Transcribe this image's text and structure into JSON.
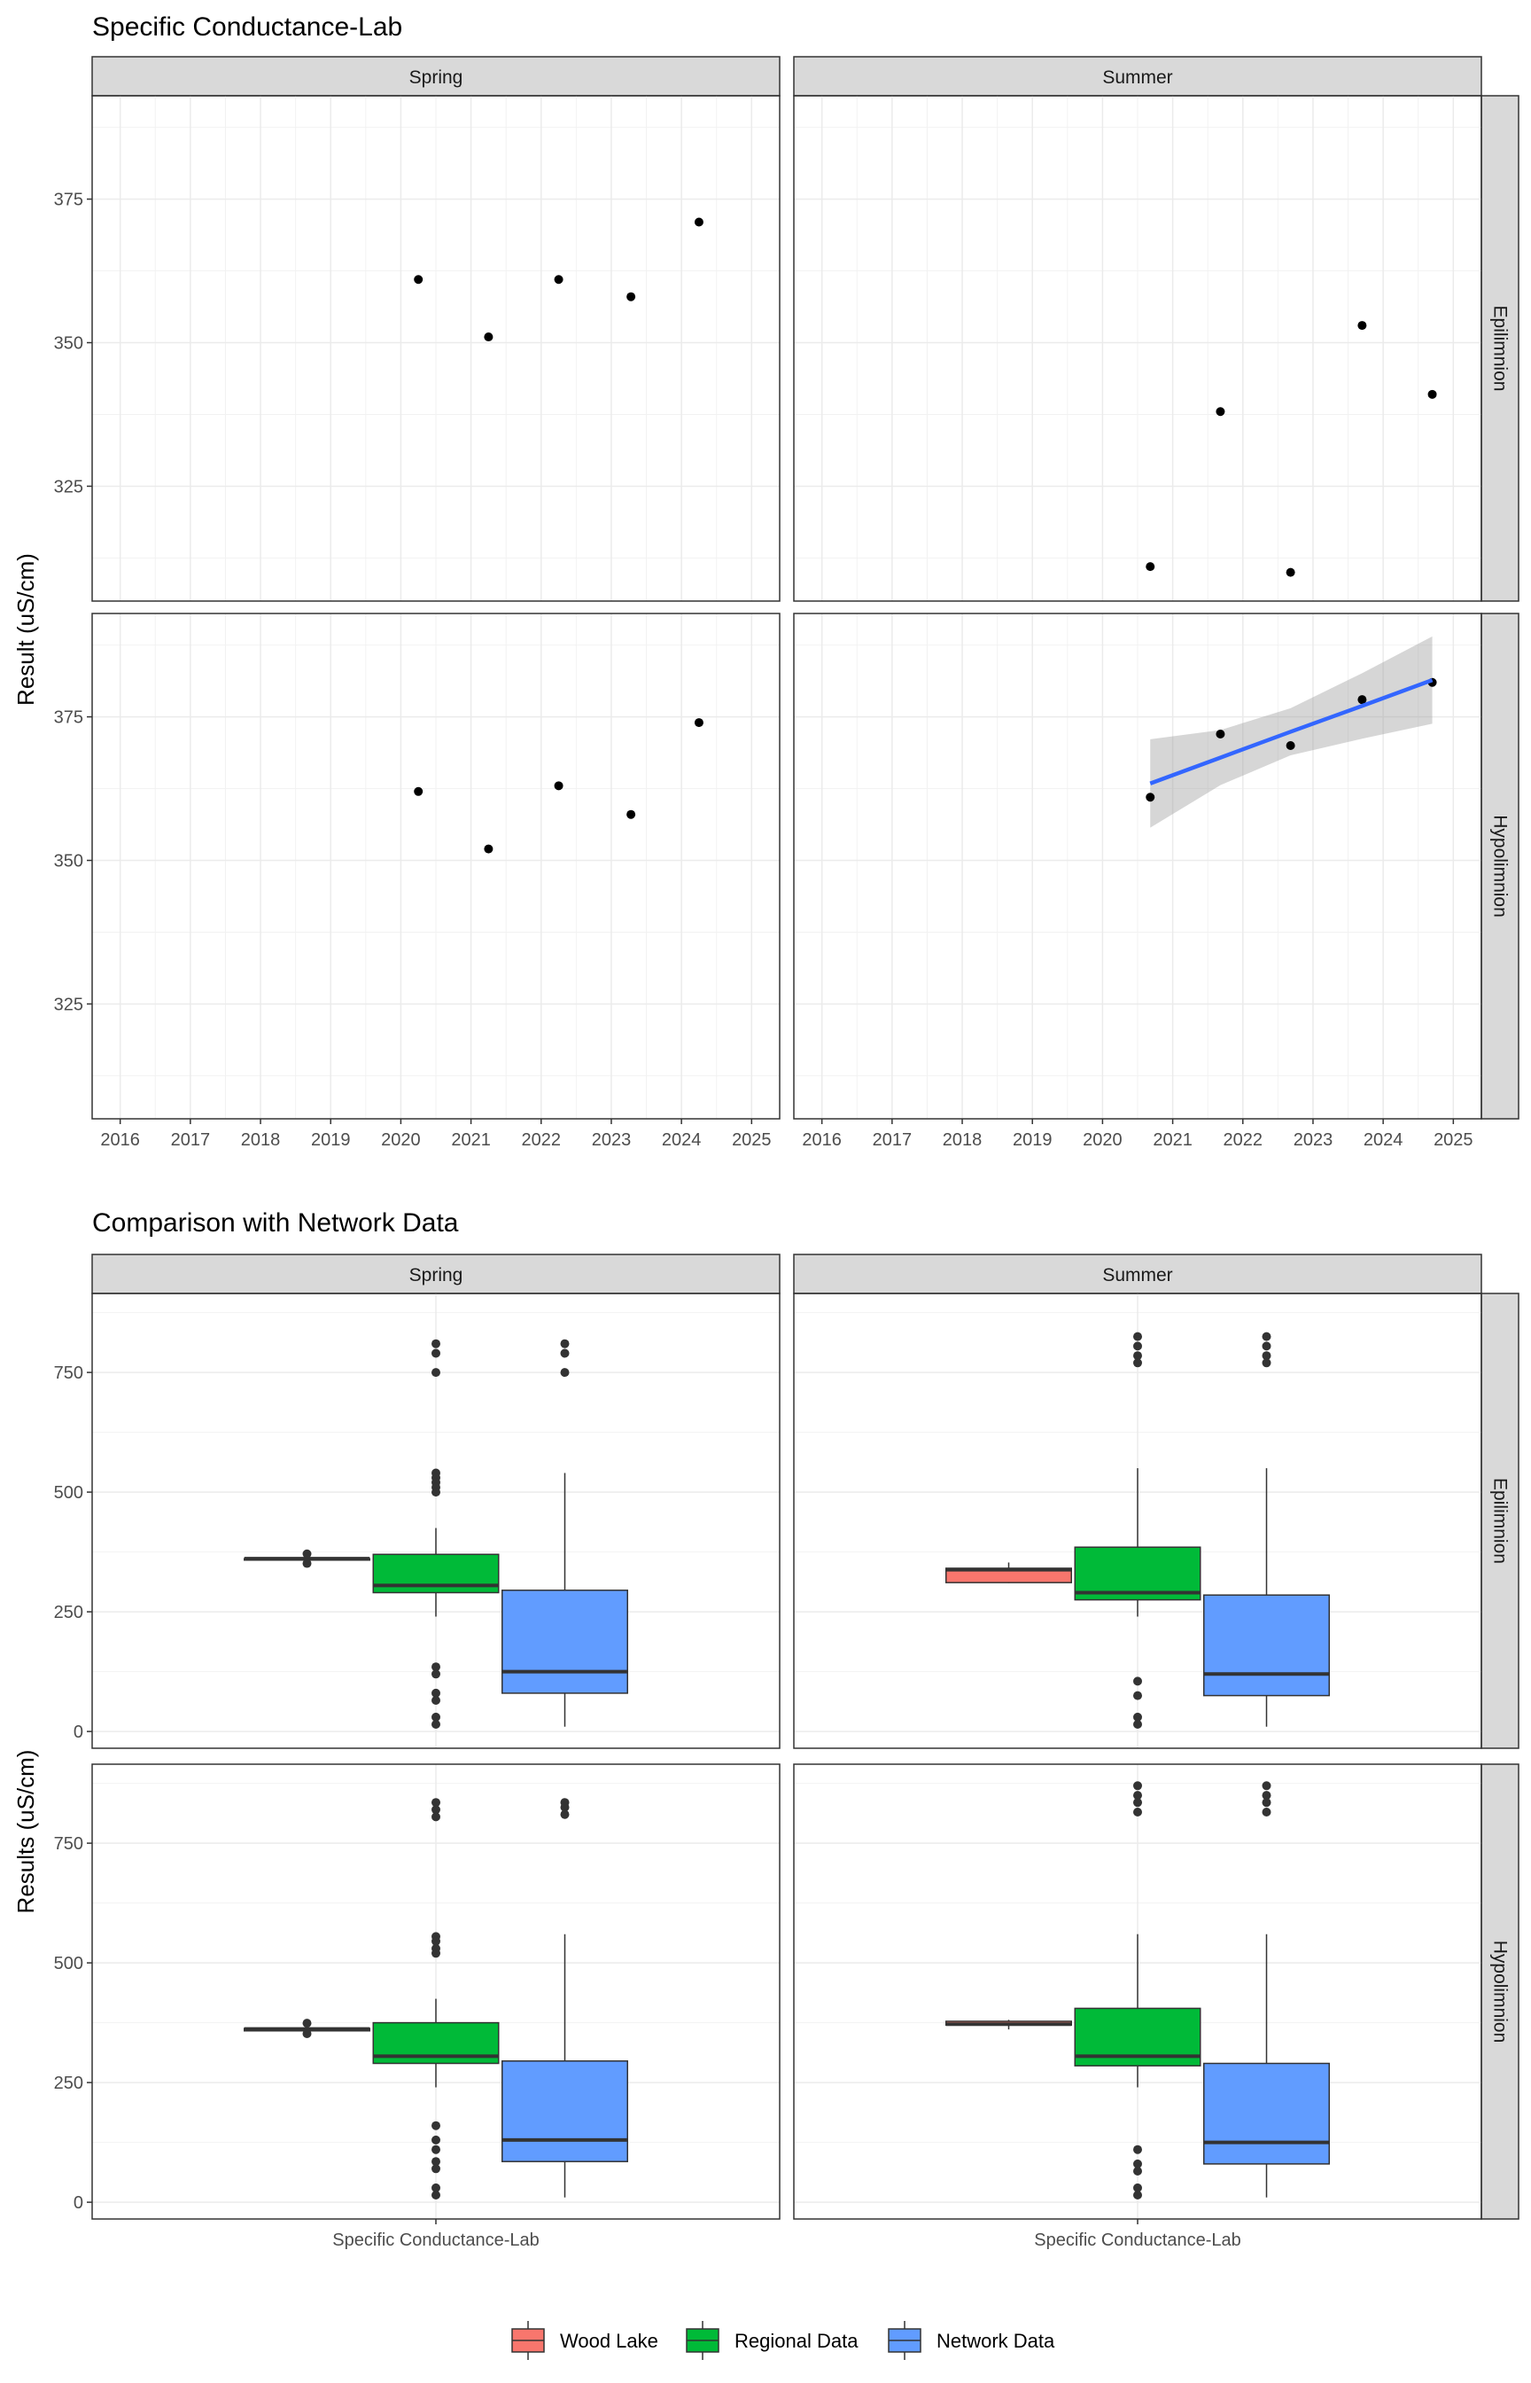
{
  "chart_data": [
    {
      "type": "scatter",
      "title": "Specific Conductance-Lab",
      "xlabel": "",
      "ylabel": "Result (uS/cm)",
      "facet_cols": [
        "Spring",
        "Summer"
      ],
      "facet_rows": [
        "Epilimnion",
        "Hypolimnion"
      ],
      "xlim": [
        2015.6,
        2025.4
      ],
      "ylim": [
        305,
        393
      ],
      "x_ticks": [
        2016,
        2017,
        2018,
        2019,
        2020,
        2021,
        2022,
        2023,
        2024,
        2025
      ],
      "y_ticks": [
        325,
        350,
        375
      ],
      "grid": true,
      "panels": [
        {
          "season": "Spring",
          "layer": "Epilimnion",
          "points": [
            [
              2020.25,
              361
            ],
            [
              2021.25,
              351
            ],
            [
              2022.25,
              361
            ],
            [
              2023.28,
              358
            ],
            [
              2024.25,
              371
            ]
          ]
        },
        {
          "season": "Summer",
          "layer": "Epilimnion",
          "points": [
            [
              2020.68,
              311
            ],
            [
              2021.68,
              338
            ],
            [
              2022.68,
              310
            ],
            [
              2023.7,
              353
            ],
            [
              2024.7,
              341
            ]
          ]
        },
        {
          "season": "Spring",
          "layer": "Hypolimnion",
          "points": [
            [
              2020.25,
              362
            ],
            [
              2021.25,
              352
            ],
            [
              2022.25,
              363
            ],
            [
              2023.28,
              358
            ],
            [
              2024.25,
              374
            ]
          ]
        },
        {
          "season": "Summer",
          "layer": "Hypolimnion",
          "points": [
            [
              2020.68,
              361
            ],
            [
              2021.68,
              372
            ],
            [
              2022.68,
              370
            ],
            [
              2023.7,
              378
            ],
            [
              2024.7,
              381
            ]
          ],
          "trend": {
            "x": [
              2020.68,
              2021.68,
              2022.68,
              2023.7,
              2024.7
            ],
            "fit": [
              363.4,
              367.9,
              372.4,
              376.9,
              381.4
            ],
            "lower": [
              355.7,
              363.1,
              368.3,
              371.2,
              373.8
            ],
            "upper": [
              371.1,
              372.7,
              376.5,
              382.6,
              389.0
            ],
            "line_color": "#3366FF",
            "band_color": "#999999"
          }
        }
      ]
    },
    {
      "type": "boxplot",
      "title": "Comparison with Network Data",
      "xlabel": "",
      "ylabel": "Results (uS/cm)",
      "categories": [
        "Specific Conductance-Lab"
      ],
      "facet_cols": [
        "Spring",
        "Summer"
      ],
      "facet_rows": [
        "Epilimnion",
        "Hypolimnion"
      ],
      "ylim": [
        -35,
        915
      ],
      "y_ticks": [
        0,
        250,
        500,
        750
      ],
      "grid": true,
      "legend_position": "bottom",
      "series": [
        {
          "name": "Wood Lake",
          "color": "#F8766D"
        },
        {
          "name": "Regional Data",
          "color": "#00BA38"
        },
        {
          "name": "Network Data",
          "color": "#619CFF"
        }
      ],
      "panels": [
        {
          "season": "Spring",
          "layer": "Epilimnion",
          "boxes": [
            {
              "series": "Wood Lake",
              "min": 351,
              "q1": 358,
              "median": 361,
              "q3": 361,
              "max": 361,
              "outliers": [
                371,
                351
              ]
            },
            {
              "series": "Regional Data",
              "min": 240,
              "q1": 290,
              "median": 305,
              "q3": 370,
              "max": 425,
              "outliers": [
                810,
                790,
                750,
                540,
                530,
                520,
                510,
                500,
                135,
                120,
                80,
                65,
                30,
                15
              ]
            },
            {
              "series": "Network Data",
              "min": 10,
              "q1": 80,
              "median": 125,
              "q3": 295,
              "max": 540,
              "outliers": [
                810,
                790,
                750
              ]
            }
          ]
        },
        {
          "season": "Summer",
          "layer": "Epilimnion",
          "boxes": [
            {
              "series": "Wood Lake",
              "min": 310,
              "q1": 311,
              "median": 338,
              "q3": 341,
              "max": 353,
              "outliers": []
            },
            {
              "series": "Regional Data",
              "min": 240,
              "q1": 275,
              "median": 290,
              "q3": 385,
              "max": 550,
              "outliers": [
                825,
                805,
                785,
                770,
                105,
                75,
                30,
                15
              ]
            },
            {
              "series": "Network Data",
              "min": 10,
              "q1": 75,
              "median": 120,
              "q3": 285,
              "max": 550,
              "outliers": [
                825,
                805,
                785,
                770
              ]
            }
          ]
        },
        {
          "season": "Spring",
          "layer": "Hypolimnion",
          "boxes": [
            {
              "series": "Wood Lake",
              "min": 352,
              "q1": 358,
              "median": 362,
              "q3": 363,
              "max": 363,
              "outliers": [
                374,
                352
              ]
            },
            {
              "series": "Regional Data",
              "min": 240,
              "q1": 290,
              "median": 305,
              "q3": 375,
              "max": 425,
              "outliers": [
                835,
                820,
                805,
                555,
                545,
                530,
                520,
                160,
                130,
                110,
                85,
                70,
                30,
                15
              ]
            },
            {
              "series": "Network Data",
              "min": 10,
              "q1": 85,
              "median": 130,
              "q3": 295,
              "max": 560,
              "outliers": [
                835,
                825,
                810
              ]
            }
          ]
        },
        {
          "season": "Summer",
          "layer": "Hypolimnion",
          "boxes": [
            {
              "series": "Wood Lake",
              "min": 361,
              "q1": 370,
              "median": 372,
              "q3": 378,
              "max": 381,
              "outliers": []
            },
            {
              "series": "Regional Data",
              "min": 240,
              "q1": 285,
              "median": 305,
              "q3": 405,
              "max": 560,
              "outliers": [
                870,
                850,
                835,
                815,
                110,
                80,
                65,
                30,
                15
              ]
            },
            {
              "series": "Network Data",
              "min": 10,
              "q1": 80,
              "median": 125,
              "q3": 290,
              "max": 560,
              "outliers": [
                870,
                850,
                835,
                815
              ]
            }
          ]
        }
      ]
    }
  ]
}
